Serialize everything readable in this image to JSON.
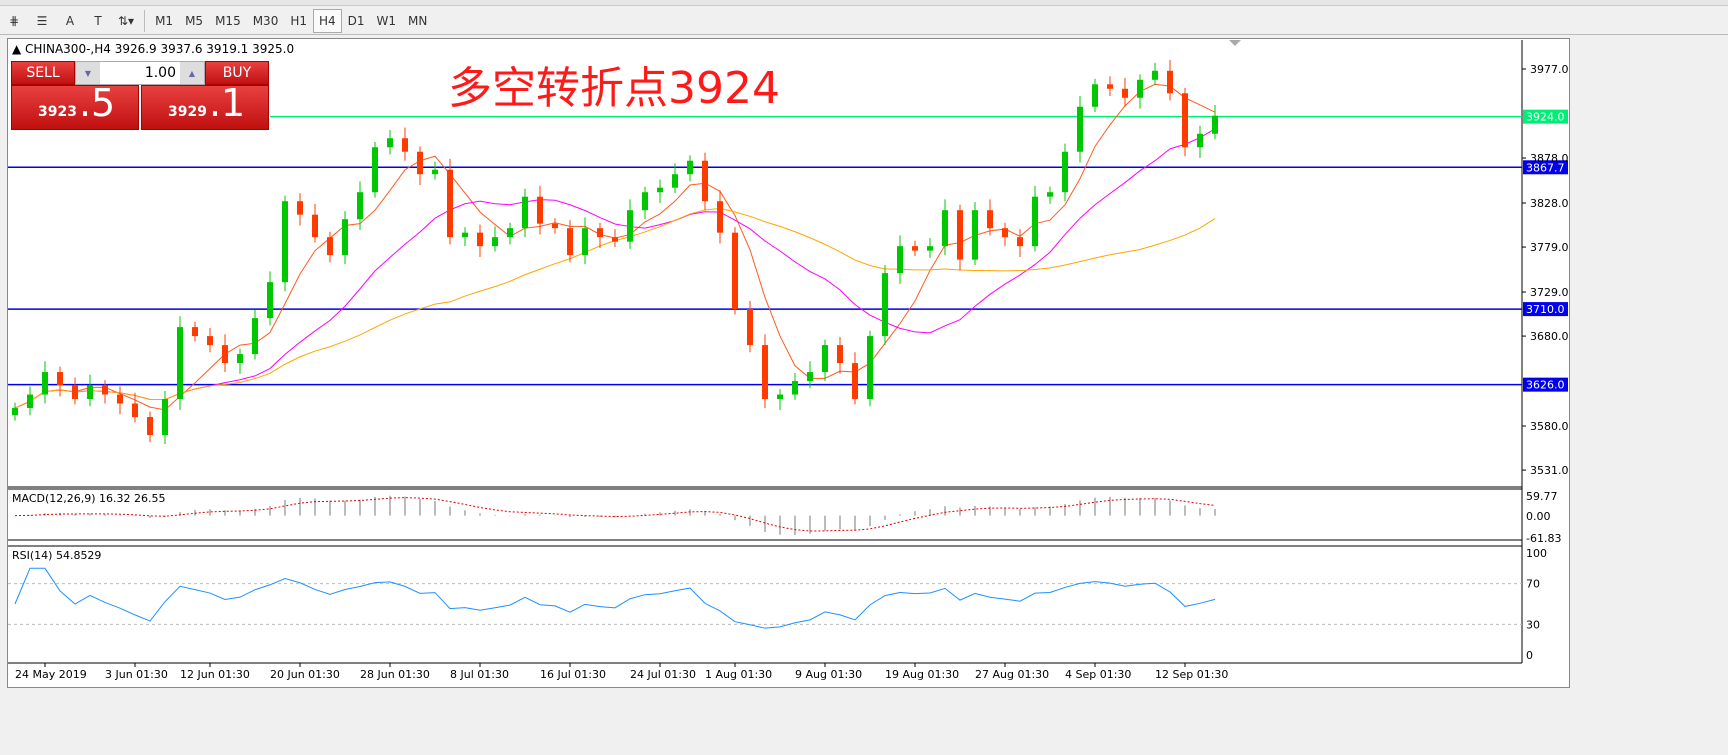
{
  "toolbar": {
    "tools": [
      {
        "icon": "fibonacci-fan-icon"
      },
      {
        "icon": "fibonacci-lines-icon"
      },
      {
        "label": "A",
        "icon": "text-icon"
      },
      {
        "label": "T",
        "icon": "text-label-icon"
      },
      {
        "icon": "arrows-dropdown-icon"
      }
    ],
    "timeframes": [
      "M1",
      "M5",
      "M15",
      "M30",
      "H1",
      "H4",
      "D1",
      "W1",
      "MN"
    ],
    "active_timeframe": "H4"
  },
  "chart": {
    "symbol_line": "CHINA300-,H4  3926.9 3937.6 3919.1 3925.0",
    "annotation": "多空转折点3924"
  },
  "trade": {
    "sell": "SELL",
    "buy": "BUY",
    "lot": "1.00",
    "bid_main": "3923",
    "bid_big": ".5",
    "ask_main": "3929",
    "ask_big": ".1"
  },
  "colors": {
    "bull": "#00c800",
    "bear": "#ff3c00",
    "level_green": "#00ee77",
    "level_blue": "#0000ee",
    "ma_fast": "#ff5a1e",
    "ma_mid": "#ff00ff",
    "ma_slow": "#ffa500",
    "rsi": "#1e90ff",
    "macd_signal": "#e00000"
  },
  "chart_data": {
    "type": "candlestick",
    "closes": [
      3600,
      3615,
      3640,
      3625,
      3610,
      3625,
      3615,
      3605,
      3590,
      3570,
      3610,
      3690,
      3680,
      3670,
      3650,
      3660,
      3700,
      3740,
      3830,
      3815,
      3790,
      3770,
      3810,
      3840,
      3890,
      3900,
      3885,
      3860,
      3865,
      3790,
      3795,
      3780,
      3790,
      3800,
      3835,
      3805,
      3800,
      3770,
      3800,
      3790,
      3785,
      3820,
      3840,
      3845,
      3860,
      3875,
      3830,
      3795,
      3710,
      3670,
      3610,
      3615,
      3630,
      3640,
      3670,
      3650,
      3610,
      3680,
      3750,
      3780,
      3775,
      3780,
      3820,
      3765,
      3820,
      3800,
      3790,
      3780,
      3835,
      3840,
      3885,
      3935,
      3960,
      3955,
      3945,
      3965,
      3975,
      3950,
      3890,
      3905,
      3925
    ],
    "ylim": [
      3500,
      3995
    ],
    "price_ticks": [
      "3977.0",
      "3878.0",
      "3828.0",
      "3779.0",
      "3729.0",
      "3680.0",
      "3580.0",
      "3531.0"
    ],
    "levels": [
      {
        "value": 3924.0,
        "label": "3924.0",
        "color": "green"
      },
      {
        "value": 3867.7,
        "label": "3867.7",
        "color": "blue"
      },
      {
        "value": 3710.0,
        "label": "3710.0",
        "color": "blue"
      },
      {
        "value": 3626.0,
        "label": "3626.0",
        "color": "blue"
      }
    ],
    "x_ticks": [
      {
        "label": "24 May 2019",
        "bar": 2
      },
      {
        "label": "3 Jun 01:30",
        "bar": 8
      },
      {
        "label": "12 Jun 01:30",
        "bar": 13
      },
      {
        "label": "20 Jun 01:30",
        "bar": 19
      },
      {
        "label": "28 Jun 01:30",
        "bar": 25
      },
      {
        "label": "8 Jul 01:30",
        "bar": 31
      },
      {
        "label": "16 Jul 01:30",
        "bar": 37
      },
      {
        "label": "24 Jul 01:30",
        "bar": 43
      },
      {
        "label": "1 Aug 01:30",
        "bar": 48
      },
      {
        "label": "9 Aug 01:30",
        "bar": 54
      },
      {
        "label": "19 Aug 01:30",
        "bar": 60
      },
      {
        "label": "27 Aug 01:30",
        "bar": 66
      },
      {
        "label": "4 Sep 01:30",
        "bar": 72
      },
      {
        "label": "12 Sep 01:30",
        "bar": 78
      }
    ],
    "macd": {
      "label": "MACD(12,26,9) 16.32 26.55",
      "ticks": [
        "59.77",
        "0.00",
        "-61.83"
      ],
      "range": [
        -61.83,
        59.77
      ]
    },
    "rsi": {
      "label": "RSI(14) 54.8529",
      "ticks": [
        "100",
        "70",
        "30",
        "0"
      ],
      "levels": [
        70,
        30
      ]
    }
  }
}
